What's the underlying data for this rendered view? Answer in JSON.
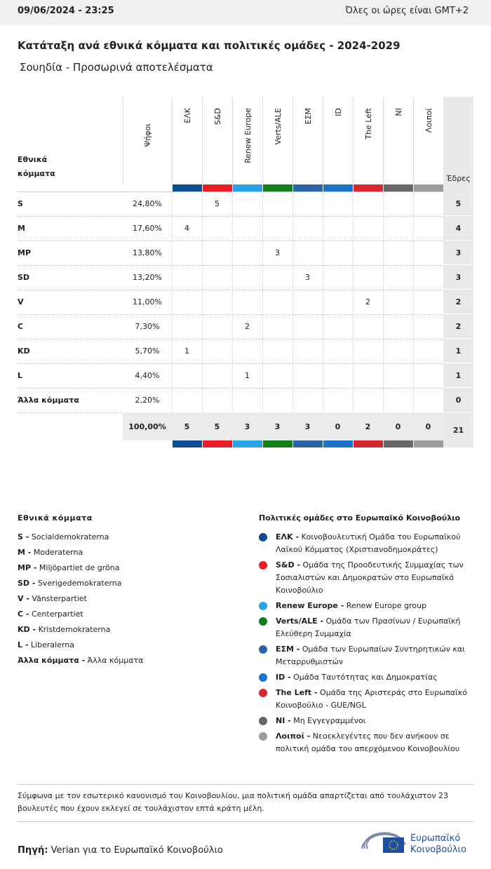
{
  "header": {
    "datetime": "09/06/2024 - 23:25",
    "timezone": "Όλες οι ώρες είναι GMT+2"
  },
  "title": "Κατάταξη ανά εθνικά κόμματα και πολιτικές ομάδες - 2024-2029",
  "subtitle": "Σουηδία - Προσωρινά αποτελέσματα",
  "table": {
    "party_header": "Εθνικά κόμματα",
    "votes_header": "Ψήφοι",
    "seats_header": "Έδρες",
    "groups": [
      {
        "name": "ΕΛΚ",
        "color": "#0b4d91"
      },
      {
        "name": "S&D",
        "color": "#ec1c24"
      },
      {
        "name": "Renew Europe",
        "color": "#28a3e8"
      },
      {
        "name": "Verts/ALE",
        "color": "#11801a"
      },
      {
        "name": "ΕΣΜ",
        "color": "#2a64a6"
      },
      {
        "name": "ID",
        "color": "#1a74c8"
      },
      {
        "name": "The Left",
        "color": "#d8282f"
      },
      {
        "name": "NI",
        "color": "#666666"
      },
      {
        "name": "Λοιποί",
        "color": "#9b9b9b"
      }
    ],
    "rows": [
      {
        "party": "S",
        "votes": "24,80%",
        "cells": [
          null,
          "5",
          null,
          null,
          null,
          null,
          null,
          null,
          null
        ],
        "seats": "5"
      },
      {
        "party": "M",
        "votes": "17,60%",
        "cells": [
          "4",
          null,
          null,
          null,
          null,
          null,
          null,
          null,
          null
        ],
        "seats": "4"
      },
      {
        "party": "MP",
        "votes": "13,80%",
        "cells": [
          null,
          null,
          null,
          "3",
          null,
          null,
          null,
          null,
          null
        ],
        "seats": "3"
      },
      {
        "party": "SD",
        "votes": "13,20%",
        "cells": [
          null,
          null,
          null,
          null,
          "3",
          null,
          null,
          null,
          null
        ],
        "seats": "3"
      },
      {
        "party": "V",
        "votes": "11,00%",
        "cells": [
          null,
          null,
          null,
          null,
          null,
          null,
          "2",
          null,
          null
        ],
        "seats": "2"
      },
      {
        "party": "C",
        "votes": "7,30%",
        "cells": [
          null,
          null,
          "2",
          null,
          null,
          null,
          null,
          null,
          null
        ],
        "seats": "2"
      },
      {
        "party": "KD",
        "votes": "5,70%",
        "cells": [
          "1",
          null,
          null,
          null,
          null,
          null,
          null,
          null,
          null
        ],
        "seats": "1"
      },
      {
        "party": "L",
        "votes": "4,40%",
        "cells": [
          null,
          null,
          "1",
          null,
          null,
          null,
          null,
          null,
          null
        ],
        "seats": "1"
      },
      {
        "party": "Άλλα κόμματα",
        "votes": "2,20%",
        "cells": [
          null,
          null,
          null,
          null,
          null,
          null,
          null,
          null,
          null
        ],
        "seats": "0"
      }
    ],
    "total": {
      "votes": "100,00%",
      "cells": [
        "5",
        "5",
        "3",
        "3",
        "3",
        "0",
        "2",
        "0",
        "0"
      ],
      "seats": "21"
    }
  },
  "national_legend": {
    "title": "Εθνικά κόμματα",
    "items": [
      {
        "abbr": "S -",
        "name": "Socialdemokraterna"
      },
      {
        "abbr": "M -",
        "name": "Moderaterna"
      },
      {
        "abbr": "MP -",
        "name": "Miljöpartiet de gröna"
      },
      {
        "abbr": "SD -",
        "name": "Sverigedemokraterna"
      },
      {
        "abbr": "V -",
        "name": "Vänsterpartiet"
      },
      {
        "abbr": "C -",
        "name": "Centerpartiet"
      },
      {
        "abbr": "KD -",
        "name": "Kristdemokraterna"
      },
      {
        "abbr": "L -",
        "name": "Liberalerna"
      },
      {
        "abbr": "Άλλα κόμματα -",
        "name": "Άλλα κόμματα"
      }
    ]
  },
  "group_legend": {
    "title": "Πολιτικές ομάδες στο Ευρωπαϊκό Κοινοβούλιο",
    "items": [
      {
        "abbr": "ΕΛΚ -",
        "name": "Κοινοβουλευτική Ομάδα του Ευρωπαϊκού Λαϊκού Κόμματος (Χριστιανοδημοκράτες)"
      },
      {
        "abbr": "S&D -",
        "name": "Ομάδα της Προοδευτικής Συμμαχίας των Σοσιαλιστών και Δημοκρατών στο Ευρωπαϊκό Κοινοβούλιο"
      },
      {
        "abbr": "Renew Europe -",
        "name": "Renew Europe group"
      },
      {
        "abbr": "Verts/ALE -",
        "name": "Ομάδα των Πρασίνων / Ευρωπαϊκή Ελεύθερη Συμμαχία"
      },
      {
        "abbr": "ΕΣΜ -",
        "name": "Ομάδα των Ευρωπαίων Συντηρητικών και Μεταρρυθμιστών"
      },
      {
        "abbr": "ID -",
        "name": "Ομάδα Ταυτότητας και Δημοκρατίας"
      },
      {
        "abbr": "The Left -",
        "name": "Ομάδα της Αριστεράς στο Ευρωπαϊκό Κοινοβούλιο - GUE/NGL"
      },
      {
        "abbr": "NI -",
        "name": "Μη Εγγεγραμμένοι"
      },
      {
        "abbr": "Λοιποί -",
        "name": "Νεοεκλεγέντες που δεν ανήκουν σε πολιτική ομάδα του απερχόμενου Κοινοβουλίου"
      }
    ]
  },
  "footnote": "Σύμφωνα με τον εσωτερικό κανονισμό του Κοινοβουλίου, μια πολιτική ομάδα απαρτίζεται από τουλάχιστον 23 βουλευτές που έχουν εκλεγεί σε τουλάχιστον επτά κράτη μέλη.",
  "source": {
    "label": "Πηγή:",
    "text": "Verian για το Ευρωπαϊκό Κοινοβούλιο"
  },
  "logo": [
    "Ευρωπαϊκό",
    "Κοινοβούλιο"
  ]
}
